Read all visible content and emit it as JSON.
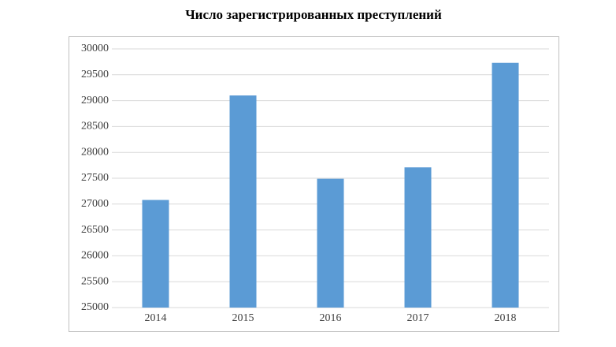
{
  "chart_data": {
    "type": "bar",
    "title": "Число зарегистрированных преступлений",
    "categories": [
      "2014",
      "2015",
      "2016",
      "2017",
      "2018"
    ],
    "values": [
      27080,
      29100,
      27490,
      27710,
      29730
    ],
    "color": "#5b9bd5",
    "ylim": [
      25000,
      30000
    ],
    "yticks": [
      25000,
      25500,
      26000,
      26500,
      27000,
      27500,
      28000,
      28500,
      29000,
      29500,
      30000
    ],
    "grid": true
  }
}
